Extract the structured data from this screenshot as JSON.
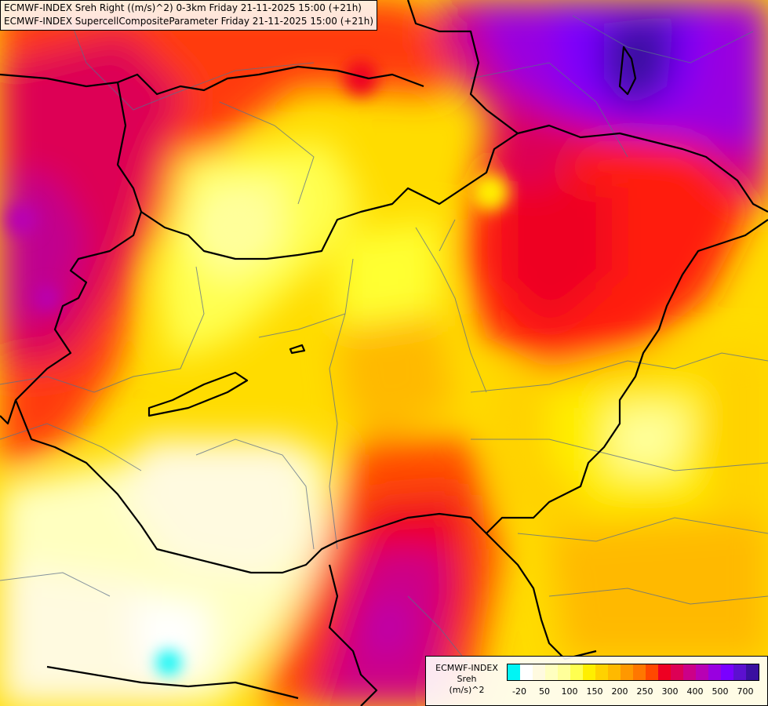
{
  "header": {
    "line1": "ECMWF-INDEX Sreh Right ((m/s)^2) 0-3km Friday 21-11-2025 15:00 (+21h)",
    "line2": "ECMWF-INDEX SupercellCompositeParameter Friday 21-11-2025 15:00 (+21h)"
  },
  "legend": {
    "title_line1": "ECMWF-INDEX",
    "title_line2": "Sreh",
    "title_line3": "(m/s)^2",
    "colors": [
      "#00f5f5",
      "#ffffff",
      "#fffae0",
      "#ffffc0",
      "#ffff9a",
      "#ffff50",
      "#ffef00",
      "#ffd200",
      "#ffb900",
      "#ff9800",
      "#ff7700",
      "#ff4800",
      "#ee0022",
      "#dd0055",
      "#cc0088",
      "#b800b4",
      "#9900e0",
      "#7a00ff",
      "#5c10d0",
      "#3a10a0"
    ],
    "tick_labels": [
      "-20",
      "50",
      "100",
      "150",
      "200",
      "250",
      "300",
      "400",
      "500",
      "700"
    ]
  }
}
